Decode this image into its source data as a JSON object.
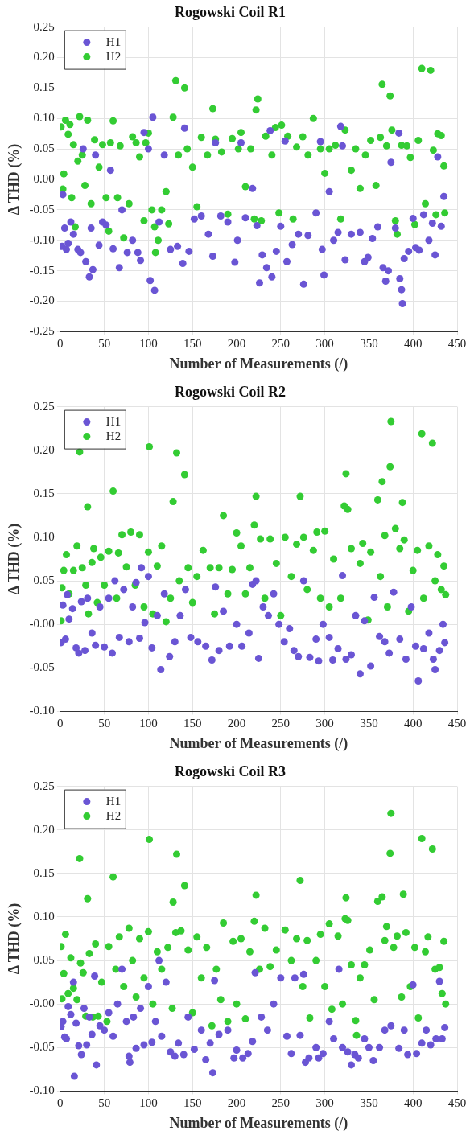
{
  "chart_data": [
    {
      "type": "scatter",
      "title": "Rogowski Coil R1",
      "xlabel": "Number of Measurements (/)",
      "ylabel": "Δ THD (%)",
      "xlim": [
        0,
        450
      ],
      "xticks": [
        0,
        50,
        100,
        150,
        200,
        250,
        300,
        350,
        400,
        450
      ],
      "ylim": [
        -0.25,
        0.25
      ],
      "yticks": [
        {
          "value": -0.25,
          "label": "-0.25"
        },
        {
          "value": -0.2,
          "label": "-0.20"
        },
        {
          "value": -0.15,
          "label": "-0.15"
        },
        {
          "value": -0.1,
          "label": "-0.10"
        },
        {
          "value": -0.05,
          "label": "-0.05"
        },
        {
          "value": 0,
          "label": "0.00"
        },
        {
          "value": 0.05,
          "label": "0.05"
        },
        {
          "value": 0.1,
          "label": "0.10"
        },
        {
          "value": 0.15,
          "label": "0.15"
        },
        {
          "value": 0.2,
          "label": "0.20"
        },
        {
          "value": 0.25,
          "label": "0.25"
        }
      ],
      "grid": true,
      "legend": "top left",
      "marker": "circle",
      "series": [
        {
          "name": "H1",
          "color": "#6a55d4",
          "x": [
            2,
            3,
            5,
            7,
            9,
            12,
            15,
            20,
            23,
            26,
            29,
            33,
            35,
            37,
            40,
            44,
            48,
            52,
            57,
            60,
            67,
            70,
            76,
            82,
            88,
            91,
            95,
            100,
            102,
            105,
            107,
            112,
            118,
            125,
            133,
            139,
            141,
            146,
            152,
            160,
            168,
            173,
            176,
            182,
            190,
            198,
            201,
            205,
            210,
            218,
            223,
            226,
            229,
            234,
            238,
            240,
            245,
            250,
            255,
            257,
            263,
            270,
            276,
            281,
            290,
            295,
            297,
            299,
            305,
            310,
            315,
            318,
            320,
            323,
            330,
            340,
            345,
            349,
            354,
            360,
            366,
            369,
            372,
            375,
            380,
            384,
            385,
            387,
            388,
            390,
            395,
            400,
            403,
            407,
            412,
            418,
            422,
            425,
            428,
            432,
            435
          ],
          "values": [
            -0.11,
            -0.025,
            -0.08,
            -0.115,
            -0.105,
            -0.07,
            -0.09,
            -0.115,
            -0.12,
            0.05,
            -0.135,
            -0.16,
            -0.08,
            -0.148,
            0.04,
            -0.108,
            -0.07,
            -0.075,
            0.015,
            -0.114,
            -0.145,
            -0.05,
            -0.12,
            -0.1,
            -0.12,
            -0.133,
            0.077,
            0.05,
            -0.166,
            0.102,
            -0.182,
            -0.07,
            0.04,
            -0.115,
            -0.11,
            -0.138,
            0.084,
            -0.118,
            -0.065,
            -0.06,
            -0.09,
            -0.126,
            0.06,
            -0.06,
            -0.07,
            -0.136,
            -0.1,
            0.06,
            -0.063,
            -0.015,
            -0.076,
            -0.17,
            -0.124,
            -0.145,
            0.08,
            -0.16,
            -0.118,
            -0.077,
            0.063,
            -0.135,
            -0.107,
            -0.09,
            -0.172,
            -0.092,
            -0.055,
            0.062,
            -0.115,
            -0.157,
            -0.02,
            -0.1,
            -0.087,
            0.087,
            0.055,
            -0.132,
            -0.09,
            -0.087,
            -0.135,
            -0.128,
            -0.097,
            -0.078,
            -0.145,
            -0.167,
            -0.15,
            0.028,
            -0.08,
            0.076,
            -0.163,
            -0.181,
            -0.204,
            -0.13,
            -0.118,
            -0.064,
            -0.112,
            -0.116,
            -0.058,
            -0.1,
            -0.072,
            -0.124,
            0.037,
            -0.077,
            -0.028
          ]
        },
        {
          "name": "H2",
          "color": "#33cc33",
          "x": [
            1,
            3,
            4,
            6,
            9,
            11,
            13,
            15,
            17,
            20,
            22,
            25,
            28,
            31,
            35,
            39,
            44,
            48,
            52,
            55,
            57,
            60,
            65,
            68,
            72,
            78,
            82,
            86,
            90,
            95,
            97,
            100,
            104,
            107,
            108,
            111,
            115,
            120,
            123,
            128,
            131,
            134,
            141,
            144,
            150,
            155,
            160,
            167,
            173,
            176,
            183,
            190,
            195,
            202,
            205,
            210,
            216,
            220,
            222,
            224,
            228,
            233,
            240,
            244,
            248,
            251,
            258,
            264,
            268,
            275,
            281,
            287,
            295,
            300,
            305,
            312,
            318,
            323,
            330,
            335,
            340,
            346,
            352,
            358,
            363,
            365,
            370,
            374,
            376,
            380,
            382,
            387,
            393,
            397,
            402,
            406,
            410,
            414,
            420,
            423,
            426,
            428,
            432,
            435,
            436
          ],
          "values": [
            0.086,
            -0.016,
            0.009,
            0.097,
            0.074,
            0.09,
            -0.03,
            0.057,
            -0.078,
            0.03,
            0.103,
            0.04,
            -0.01,
            0.097,
            -0.04,
            0.065,
            0.02,
            0.057,
            -0.03,
            -0.085,
            0.06,
            0.096,
            -0.03,
            0.055,
            -0.096,
            -0.04,
            0.07,
            0.06,
            0.037,
            -0.068,
            0.06,
            0.076,
            -0.05,
            -0.078,
            -0.12,
            -0.1,
            -0.05,
            -0.02,
            -0.073,
            0.102,
            0.162,
            0.04,
            0.15,
            0.05,
            0.02,
            -0.045,
            0.069,
            0.04,
            0.116,
            0.066,
            0.045,
            -0.057,
            0.067,
            0.05,
            0.077,
            -0.012,
            0.05,
            -0.065,
            0.114,
            0.132,
            -0.068,
            0.071,
            0.04,
            0.085,
            -0.055,
            0.089,
            0.071,
            -0.065,
            0.053,
            0.07,
            0.04,
            0.1,
            0.05,
            0.01,
            0.05,
            0.056,
            -0.065,
            0.081,
            0.015,
            0.05,
            -0.015,
            0.04,
            0.064,
            -0.01,
            0.069,
            0.156,
            0.055,
            0.137,
            0.081,
            -0.068,
            -0.09,
            0.056,
            0.055,
            0.036,
            -0.074,
            0.064,
            0.182,
            -0.04,
            0.179,
            0.048,
            -0.058,
            0.075,
            0.072,
            0.022,
            -0.055
          ]
        }
      ]
    },
    {
      "type": "scatter",
      "title": "Rogowski Coil R2",
      "xlabel": "Number of Measurements (/)",
      "ylabel": "Δ THD (%)",
      "xlim": [
        0,
        450
      ],
      "xticks": [
        0,
        50,
        100,
        150,
        200,
        250,
        300,
        350,
        400,
        450
      ],
      "ylim": [
        -0.1,
        0.25
      ],
      "yticks": [
        {
          "value": -0.1,
          "label": "-0.10"
        },
        {
          "value": -0.05,
          "label": "-0.05"
        },
        {
          "value": 0,
          "label": "-0.00"
        },
        {
          "value": 0.05,
          "label": "0.05"
        },
        {
          "value": 0.1,
          "label": "0.10"
        },
        {
          "value": 0.15,
          "label": "0.15"
        },
        {
          "value": 0.2,
          "label": "0.20"
        },
        {
          "value": 0.25,
          "label": "0.25"
        }
      ],
      "grid": true,
      "legend": "top left",
      "marker": "circle",
      "series": [
        {
          "name": "H1",
          "color": "#6a55d4",
          "x": [
            1,
            3,
            6,
            8,
            10,
            14,
            18,
            21,
            24,
            28,
            31,
            36,
            40,
            45,
            50,
            55,
            59,
            62,
            67,
            72,
            78,
            82,
            86,
            90,
            92,
            96,
            100,
            104,
            110,
            114,
            118,
            124,
            130,
            136,
            142,
            148,
            156,
            165,
            172,
            176,
            180,
            185,
            192,
            200,
            206,
            214,
            218,
            222,
            225,
            230,
            236,
            242,
            248,
            254,
            260,
            265,
            270,
            276,
            283,
            290,
            293,
            298,
            305,
            309,
            315,
            320,
            324,
            330,
            335,
            340,
            345,
            352,
            356,
            362,
            368,
            373,
            378,
            385,
            392,
            398,
            403,
            406,
            412,
            418,
            423,
            425,
            430,
            434,
            436
          ],
          "values": [
            -0.021,
            0.022,
            -0.017,
            0.034,
            0.006,
            0.018,
            -0.027,
            -0.033,
            0.026,
            -0.03,
            0.03,
            -0.01,
            -0.024,
            0.02,
            -0.026,
            0.03,
            -0.033,
            0.05,
            -0.015,
            0.04,
            -0.02,
            0.02,
            0.048,
            -0.016,
            0.065,
            0.002,
            0.055,
            -0.027,
            0.01,
            -0.052,
            0.035,
            -0.037,
            -0.02,
            0.01,
            0.04,
            -0.015,
            -0.02,
            -0.025,
            -0.041,
            0.043,
            -0.03,
            0.015,
            -0.025,
            0.0,
            -0.025,
            -0.01,
            0.046,
            0.05,
            -0.039,
            0.02,
            0.01,
            0.035,
            0.0,
            -0.02,
            -0.005,
            -0.03,
            -0.037,
            0.05,
            -0.038,
            -0.017,
            -0.042,
            0.0,
            -0.015,
            -0.041,
            -0.028,
            0.056,
            -0.04,
            -0.035,
            0.01,
            -0.057,
            0.004,
            -0.048,
            0.031,
            -0.014,
            -0.02,
            -0.033,
            0.037,
            -0.017,
            -0.04,
            0.02,
            -0.025,
            -0.065,
            -0.028,
            -0.01,
            -0.04,
            -0.052,
            -0.03,
            0.0,
            -0.021
          ]
        },
        {
          "name": "H2",
          "color": "#33cc33",
          "x": [
            1,
            2,
            4,
            7,
            10,
            15,
            19,
            22,
            25,
            29,
            31,
            32,
            36,
            38,
            42,
            46,
            50,
            55,
            60,
            64,
            66,
            70,
            75,
            80,
            85,
            90,
            95,
            100,
            101,
            105,
            110,
            115,
            120,
            125,
            128,
            132,
            135,
            141,
            145,
            150,
            155,
            162,
            170,
            175,
            180,
            185,
            190,
            195,
            200,
            205,
            210,
            215,
            220,
            222,
            227,
            232,
            238,
            245,
            250,
            255,
            262,
            268,
            272,
            276,
            280,
            287,
            291,
            295,
            300,
            305,
            310,
            318,
            322,
            324,
            326,
            330,
            335,
            340,
            343,
            349,
            352,
            360,
            363,
            365,
            368,
            371,
            374,
            375,
            380,
            385,
            388,
            390,
            395,
            400,
            405,
            410,
            412,
            418,
            422,
            425,
            428,
            432,
            435,
            437
          ],
          "values": [
            0.004,
            0.042,
            0.062,
            0.08,
            0.035,
            0.062,
            0.09,
            0.198,
            0.065,
            0.045,
            0.135,
            0.012,
            0.071,
            0.087,
            0.025,
            0.077,
            0.045,
            0.084,
            0.153,
            0.03,
            0.082,
            0.103,
            0.066,
            0.106,
            0.045,
            0.103,
            0.02,
            0.083,
            0.204,
            0.012,
            0.067,
            0.09,
            0.003,
            0.03,
            0.141,
            0.197,
            0.05,
            0.172,
            0.065,
            0.025,
            0.055,
            0.085,
            0.065,
            0.012,
            0.065,
            0.125,
            0.035,
            0.063,
            0.105,
            0.09,
            0.035,
            0.065,
            0.114,
            0.147,
            0.098,
            0.03,
            0.098,
            0.07,
            0.01,
            0.1,
            0.055,
            0.092,
            0.147,
            0.1,
            0.04,
            0.085,
            0.106,
            0.03,
            0.107,
            0.02,
            0.075,
            0.03,
            0.136,
            0.173,
            0.132,
            0.087,
            null,
            0.07,
            0.093,
            0.005,
            0.083,
            0.143,
            0.055,
            0.164,
            0.102,
            0.02,
            0.181,
            0.233,
            0.11,
            0.087,
            0.14,
            0.097,
            0.015,
            0.062,
            0.085,
            0.219,
            0.03,
            0.09,
            0.208,
            0.05,
            0.08,
            0.04,
            0.067,
            0.034
          ]
        }
      ]
    },
    {
      "type": "scatter",
      "title": "Rogowski Coil R3",
      "xlabel": "Number of Measurements (/)",
      "ylabel": "Δ THD (%)",
      "xlim": [
        0,
        450
      ],
      "xticks": [
        0,
        50,
        100,
        150,
        200,
        250,
        300,
        350,
        400,
        450
      ],
      "ylim": [
        -0.1,
        0.25
      ],
      "yticks": [
        {
          "value": -0.1,
          "label": "-0.10"
        },
        {
          "value": -0.05,
          "label": "-0.05"
        },
        {
          "value": 0,
          "label": "-0.00"
        },
        {
          "value": 0.05,
          "label": "0.05"
        },
        {
          "value": 0.1,
          "label": "0.10"
        },
        {
          "value": 0.15,
          "label": "0.15"
        },
        {
          "value": 0.2,
          "label": "0.20"
        },
        {
          "value": 0.25,
          "label": "0.25"
        }
      ],
      "grid": true,
      "legend": "top left",
      "marker": "circle",
      "series": [
        {
          "name": "H1",
          "color": "#6a55d4",
          "x": [
            1,
            3,
            5,
            7,
            9,
            12,
            15,
            16,
            18,
            21,
            24,
            27,
            30,
            33,
            36,
            39,
            41,
            45,
            50,
            55,
            60,
            65,
            70,
            75,
            78,
            79,
            83,
            86,
            91,
            95,
            100,
            104,
            108,
            112,
            115,
            120,
            125,
            130,
            134,
            140,
            145,
            152,
            160,
            165,
            170,
            173,
            175,
            180,
            190,
            197,
            200,
            207,
            213,
            218,
            221,
            228,
            235,
            242,
            250,
            257,
            262,
            266,
            272,
            276,
            278,
            282,
            290,
            293,
            298,
            305,
            310,
            316,
            320,
            326,
            330,
            334,
            338,
            345,
            350,
            355,
            362,
            368,
            375,
            384,
            390,
            394,
            400,
            404,
            410,
            415,
            420,
            426,
            430,
            433,
            436
          ],
          "values": [
            -0.026,
            -0.02,
            -0.038,
            -0.04,
            -0.003,
            -0.012,
            0.025,
            -0.083,
            -0.022,
            -0.048,
            -0.058,
            -0.005,
            -0.047,
            -0.015,
            -0.035,
            0.032,
            -0.07,
            -0.025,
            -0.03,
            -0.01,
            -0.037,
            0.0,
            0.04,
            -0.02,
            -0.06,
            -0.067,
            -0.015,
            -0.051,
            -0.005,
            -0.047,
            0.02,
            -0.044,
            -0.02,
            0.05,
            -0.037,
            0.025,
            -0.055,
            -0.06,
            -0.045,
            -0.058,
            -0.015,
            -0.052,
            -0.03,
            -0.064,
            -0.045,
            -0.079,
            0.027,
            -0.035,
            -0.03,
            -0.062,
            -0.053,
            -0.062,
            -0.057,
            -0.043,
            0.036,
            -0.015,
            -0.03,
            0.0,
            0.03,
            -0.037,
            -0.057,
            0.03,
            -0.036,
            0.034,
            -0.067,
            -0.062,
            -0.05,
            -0.062,
            -0.057,
            -0.02,
            -0.04,
            0.04,
            -0.05,
            -0.055,
            -0.07,
            -0.058,
            -0.062,
            -0.04,
            -0.05,
            -0.065,
            -0.05,
            -0.03,
            -0.025,
            -0.051,
            -0.03,
            -0.058,
            0.022,
            -0.057,
            -0.045,
            -0.03,
            -0.047,
            -0.04,
            0.026,
            -0.04,
            -0.027
          ]
        },
        {
          "name": "H2",
          "color": "#33cc33",
          "x": [
            1,
            2,
            4,
            6,
            9,
            12,
            15,
            19,
            22,
            23,
            26,
            29,
            31,
            33,
            37,
            40,
            43,
            47,
            53,
            55,
            60,
            63,
            67,
            72,
            78,
            82,
            86,
            90,
            95,
            100,
            101,
            105,
            110,
            115,
            122,
            127,
            128,
            131,
            132,
            137,
            141,
            145,
            150,
            155,
            160,
            166,
            172,
            177,
            182,
            185,
            190,
            196,
            200,
            205,
            210,
            215,
            220,
            222,
            226,
            232,
            238,
            245,
            250,
            255,
            262,
            268,
            272,
            275,
            280,
            283,
            290,
            295,
            300,
            305,
            308,
            315,
            320,
            323,
            324,
            326,
            330,
            335,
            336,
            340,
            345,
            351,
            356,
            360,
            365,
            368,
            370,
            374,
            375,
            378,
            382,
            387,
            389,
            392,
            397,
            402,
            406,
            410,
            414,
            417,
            422,
            425,
            430,
            433,
            435,
            437
          ],
          "values": [
            0.066,
            0.006,
            0.035,
            0.08,
            0.012,
            0.053,
            0.018,
            0.005,
            0.167,
            0.047,
            0.036,
            -0.014,
            0.121,
            0.058,
            -0.015,
            0.069,
            -0.014,
            0.025,
            -0.02,
            0.066,
            0.146,
            0.04,
            0.077,
            0.02,
            0.087,
            0.05,
            0.008,
            0.075,
            0.03,
            0.083,
            0.189,
            0.0,
            0.06,
            0.04,
            0.065,
            -0.005,
            0.117,
            0.082,
            0.172,
            0.084,
            0.136,
            0.062,
            -0.01,
            0.077,
            0.03,
            0.065,
            -0.025,
            0.04,
            0.005,
            0.093,
            -0.02,
            0.072,
            0.0,
            0.075,
            -0.017,
            0.06,
            0.095,
            0.125,
            0.04,
            0.087,
            0.043,
            0.062,
            null,
            0.085,
            0.05,
            0.075,
            0.142,
            0.02,
            0.073,
            -0.016,
            0.05,
            0.08,
            0.02,
            0.092,
            -0.006,
            0.078,
            0.0,
            0.098,
            0.122,
            0.096,
            0.045,
            -0.019,
            -0.036,
            0.03,
            0.045,
            0.062,
            0.005,
            0.118,
            0.123,
            0.073,
            0.089,
            0.173,
            0.219,
            0.065,
            0.078,
            0.008,
            0.126,
            0.082,
            0.02,
            0.065,
            -0.016,
            0.19,
            0.06,
            0.077,
            0.178,
            0.04,
            0.042,
            0.012,
            0.072,
            0.0
          ]
        }
      ]
    }
  ]
}
